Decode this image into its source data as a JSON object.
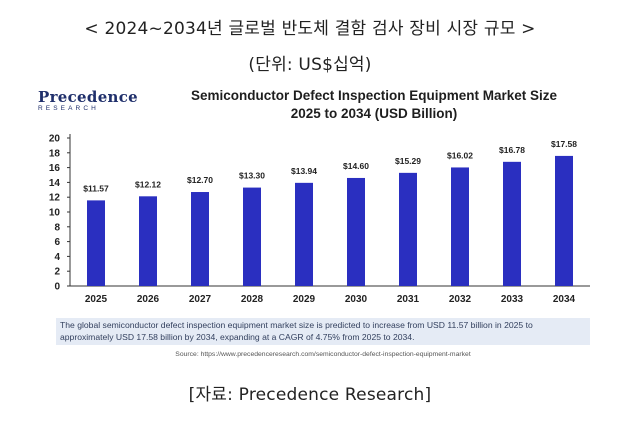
{
  "heading": "< 2024~2034년 글로벌 반도체 결함 검사 장비 시장 규모 >",
  "unit_label": "(단위: US$십억)",
  "logo": {
    "main": "Precedence",
    "sub": "RESEARCH"
  },
  "note": "The global semiconductor defect inspection equipment market size is predicted to increase from USD 11.57 billion in 2025 to approximately USD 17.58 billion by 2034, expanding at a CAGR of 4.75% from 2025 to 2034.",
  "source": "Source: https://www.precedenceresearch.com/semiconductor-defect-inspection-equipment-market",
  "reference": "[자료: Precedence Research]",
  "colors": {
    "bar": "#2a2fc0",
    "logo": "#1f2f6b",
    "note_bg": "#e5ebf5"
  },
  "chart_data": {
    "type": "bar",
    "title": "Semiconductor Defect Inspection Equipment Market Size",
    "subtitle": "2025 to 2034 (USD Billion)",
    "categories": [
      "2025",
      "2026",
      "2027",
      "2028",
      "2029",
      "2030",
      "2031",
      "2032",
      "2033",
      "2034"
    ],
    "values": [
      11.57,
      12.12,
      12.7,
      13.3,
      13.94,
      14.6,
      15.29,
      16.02,
      16.78,
      17.58
    ],
    "data_labels": [
      "$11.57",
      "$12.12",
      "$12.70",
      "$13.30",
      "$13.94",
      "$14.60",
      "$15.29",
      "$16.02",
      "$16.78",
      "$17.58"
    ],
    "yticks": [
      "0",
      "2",
      "4",
      "6",
      "8",
      "10",
      "12",
      "14",
      "16",
      "18",
      "20"
    ],
    "ylim": [
      0,
      20
    ],
    "xlabel": "",
    "ylabel": "",
    "grid": false,
    "legend": "none"
  }
}
